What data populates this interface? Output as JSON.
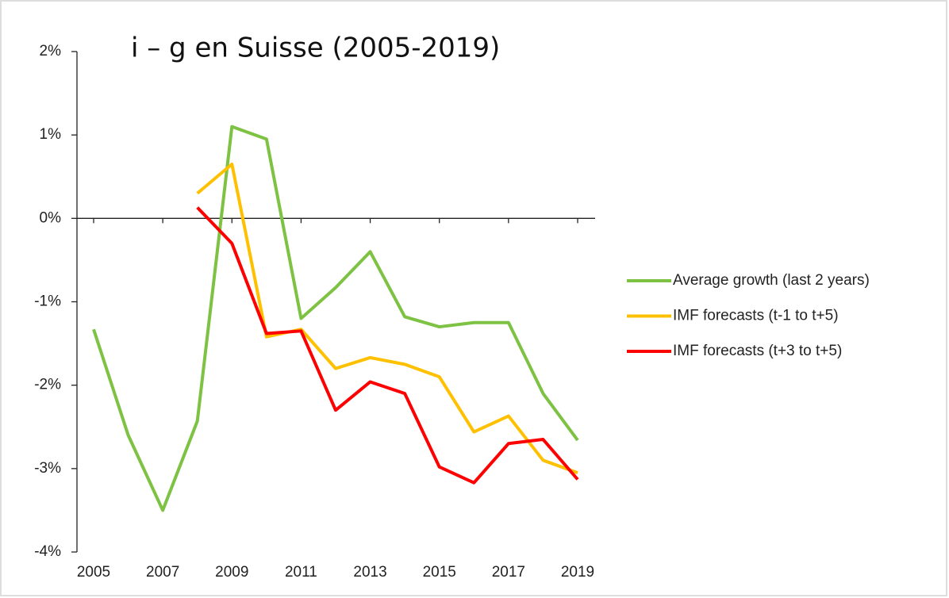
{
  "chart_data": {
    "type": "line",
    "title": "i – g en Suisse (2005-2019)",
    "x": [
      2005,
      2006,
      2007,
      2008,
      2009,
      2010,
      2011,
      2012,
      2013,
      2014,
      2015,
      2016,
      2017,
      2018,
      2019
    ],
    "series": [
      {
        "name": "Average growth (last 2 years)",
        "color": "#7dc242",
        "values": [
          -1.33,
          -2.6,
          -3.5,
          -2.43,
          1.1,
          0.95,
          -1.2,
          -0.83,
          -0.4,
          -1.18,
          -1.3,
          -1.25,
          -1.25,
          -2.1,
          -2.66
        ]
      },
      {
        "name": "IMF forecasts (t-1 to t+5)",
        "color": "#ffc000",
        "values": [
          null,
          null,
          null,
          0.3,
          0.65,
          -1.42,
          -1.33,
          -1.8,
          -1.67,
          -1.75,
          -1.9,
          -2.56,
          -2.37,
          -2.9,
          -3.05
        ]
      },
      {
        "name": "IMF  forecasts (t+3 to t+5)",
        "color": "#ff0000",
        "values": [
          null,
          null,
          null,
          0.13,
          -0.3,
          -1.38,
          -1.35,
          -2.3,
          -1.96,
          -2.1,
          -2.98,
          -3.17,
          -2.7,
          -2.65,
          -3.13
        ]
      }
    ],
    "xlim": [
      2005,
      2019
    ],
    "xticks": [
      2005,
      2007,
      2009,
      2011,
      2013,
      2015,
      2017,
      2019
    ],
    "ylim": [
      -4,
      2
    ],
    "yticks": [
      {
        "value": 2,
        "label": "2%"
      },
      {
        "value": 1,
        "label": "1%"
      },
      {
        "value": 0,
        "label": "0%"
      },
      {
        "value": -1,
        "label": "-1%"
      },
      {
        "value": -2,
        "label": "-2%"
      },
      {
        "value": -3,
        "label": "-3%"
      },
      {
        "value": -4,
        "label": "-4%"
      }
    ],
    "legend": "right"
  }
}
